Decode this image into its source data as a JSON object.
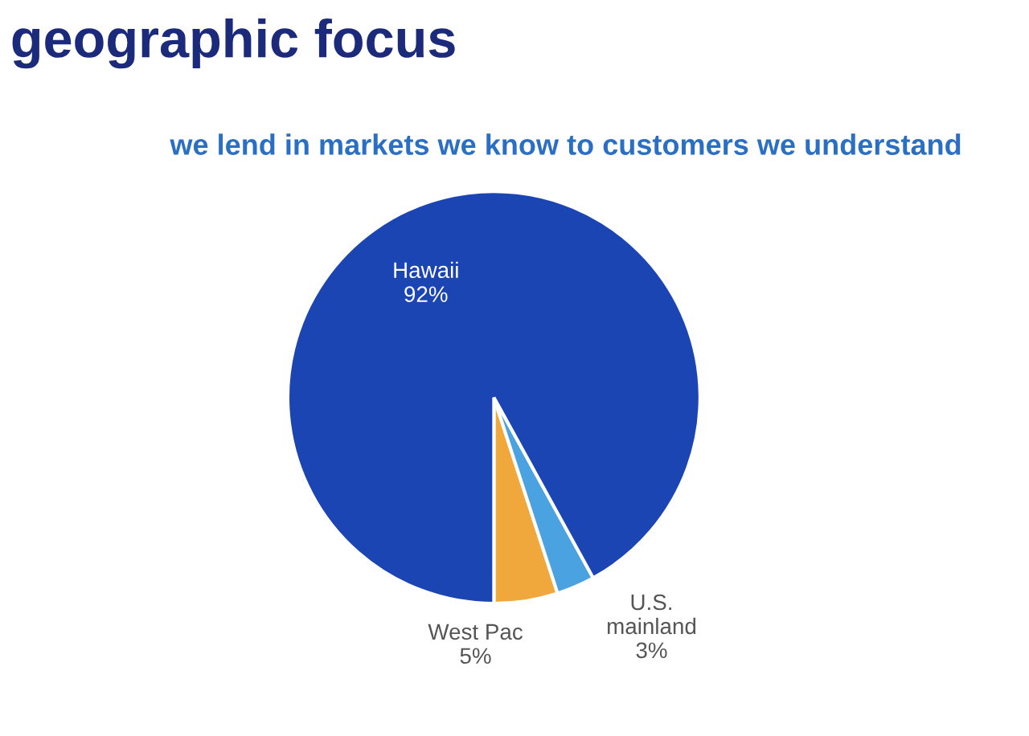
{
  "chart_data": {
    "type": "pie",
    "title": "geographic focus",
    "subtitle": "we lend in markets we know to customers we understand",
    "categories": [
      "West Pac",
      "U.S.\nmainland",
      "Hawaii"
    ],
    "values": [
      5,
      3,
      92
    ],
    "value_labels": [
      "5%",
      "3%",
      "92%"
    ],
    "colors": [
      "#f0a83c",
      "#4aa2e0",
      "#1c45b4"
    ],
    "legend": false
  }
}
